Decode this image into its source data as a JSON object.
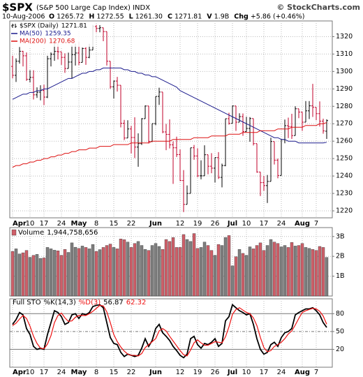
{
  "chart_data": [
    {
      "type": "ohlc",
      "title": "$SPX",
      "subtitle": "(S&P 500 Large Cap Index) INDX",
      "date": "10-Aug-2006",
      "source": "© StockCharts.com",
      "quote": [
        {
          "label": "O",
          "value": "1265.72"
        },
        {
          "label": "H",
          "value": "1272.55"
        },
        {
          "label": "L",
          "value": "1261.30"
        },
        {
          "label": "C",
          "value": "1271.81"
        },
        {
          "label": "V",
          "value": "1.9B"
        },
        {
          "label": "Chg",
          "value": "+5.86 (+0.46%)"
        }
      ],
      "name": "$SPX (Daily)",
      "up_color": "#000000",
      "down_color": "#c0002a",
      "categories": [
        "Apr",
        null,
        null,
        null,
        null,
        "10",
        null,
        null,
        null,
        "17",
        null,
        null,
        null,
        null,
        "24",
        null,
        null,
        null,
        null,
        "May",
        null,
        null,
        null,
        null,
        "8",
        null,
        null,
        null,
        null,
        "15",
        null,
        null,
        null,
        null,
        "22",
        null,
        null,
        null,
        null,
        null,
        null,
        "Jun",
        null,
        null,
        null,
        null,
        null,
        null,
        "12",
        null,
        null,
        null,
        null,
        "19",
        null,
        null,
        null,
        null,
        "26",
        null,
        null,
        null,
        null,
        "Jul",
        null,
        null,
        null,
        "10",
        null,
        null,
        null,
        null,
        "17",
        null,
        null,
        null,
        null,
        "24",
        null,
        null,
        null,
        null,
        null,
        "Aug",
        null,
        null,
        null,
        "7",
        null,
        null,
        null
      ],
      "open": [
        1302.9,
        1297.8,
        1305.9,
        1311.6,
        1309.0,
        1295.5,
        1296.6,
        1286.6,
        1288.1,
        1289.1,
        1285.3,
        1307.3,
        1309.9,
        1311.5,
        1311.3,
        1308.1,
        1301.7,
        1305.4,
        1309.7,
        1310.6,
        1305.2,
        1313.2,
        1308.1,
        1312.3,
        1325.8,
        1324.7,
        1325.1,
        1322.9,
        1305.9,
        1291.2,
        1294.5,
        1292.1,
        1270.3,
        1261.8,
        1267.0,
        1262.1,
        1256.6,
        1258.6,
        1272.9,
        1280.2,
        1259.9,
        1270.1,
        1285.7,
        1288.2,
        1265.3,
        1263.9,
        1257.9,
        1256.2,
        1252.3,
        1237.4,
        1223.7,
        1230.0,
        1256.2,
        1251.5,
        1240.1,
        1240.1,
        1252.2,
        1245.6,
        1244.5,
        1250.6,
        1239.2,
        1246.0,
        1272.9,
        1270.2,
        1280.2,
        1270.9,
        1274.1,
        1265.5,
        1267.3,
        1273.0,
        1258.6,
        1242.3,
        1236.2,
        1234.5,
        1236.9,
        1259.8,
        1249.1,
        1240.3,
        1260.9,
        1268.9,
        1268.4,
        1263.2,
        1278.6,
        1276.7,
        1270.9,
        1277.4,
        1280.3,
        1279.4,
        1275.8,
        1271.5,
        1265.72
      ],
      "high": [
        1309.0,
        1307.5,
        1314.0,
        1311.8,
        1310.9,
        1300.7,
        1300.7,
        1290.9,
        1292.1,
        1292.4,
        1309.0,
        1310.9,
        1318.2,
        1316.0,
        1311.3,
        1310.4,
        1310.8,
        1315.2,
        1316.0,
        1317.2,
        1313.7,
        1313.9,
        1315.9,
        1326.7,
        1326.7,
        1326.6,
        1325.2,
        1322.9,
        1305.9,
        1294.8,
        1296.9,
        1292.1,
        1272.2,
        1272.0,
        1268.8,
        1273.7,
        1264.5,
        1273.2,
        1280.5,
        1280.2,
        1270.1,
        1285.7,
        1290.7,
        1288.2,
        1269.9,
        1272.5,
        1259.9,
        1262.6,
        1255.2,
        1243.4,
        1234.6,
        1256.2,
        1257.8,
        1255.9,
        1249.0,
        1257.6,
        1252.2,
        1253.1,
        1250.6,
        1253.7,
        1247.1,
        1272.9,
        1276.3,
        1280.4,
        1280.2,
        1276.0,
        1275.9,
        1274.0,
        1273.8,
        1273.0,
        1258.6,
        1242.3,
        1240.1,
        1240.6,
        1262.0,
        1259.8,
        1250.0,
        1260.9,
        1272.4,
        1273.5,
        1275.7,
        1280.0,
        1278.6,
        1276.7,
        1283.0,
        1283.0,
        1292.9,
        1279.4,
        1282.8,
        1272.9,
        1272.55
      ],
      "low": [
        1296.0,
        1294.0,
        1304.5,
        1302.9,
        1294.6,
        1293.7,
        1283.9,
        1284.8,
        1283.4,
        1280.7,
        1284.7,
        1302.9,
        1306.1,
        1306.9,
        1303.8,
        1299.2,
        1301.7,
        1296.0,
        1303.4,
        1303.6,
        1305.2,
        1303.8,
        1307.6,
        1312.3,
        1322.5,
        1322.5,
        1317.4,
        1303.4,
        1290.1,
        1284.5,
        1288.5,
        1267.9,
        1260.6,
        1261.8,
        1252.9,
        1250.3,
        1245.3,
        1257.8,
        1272.9,
        1258.7,
        1259.5,
        1269.2,
        1280.8,
        1264.6,
        1254.8,
        1255.8,
        1235.5,
        1250.9,
        1237.1,
        1219.3,
        1223.7,
        1230.0,
        1249.3,
        1239.3,
        1238.1,
        1240.1,
        1241.0,
        1241.6,
        1236.3,
        1238.3,
        1233.5,
        1245.6,
        1269.5,
        1270.2,
        1265.9,
        1270.9,
        1263.1,
        1265.5,
        1259.7,
        1257.5,
        1241.9,
        1228.5,
        1231.5,
        1224.5,
        1236.9,
        1246.6,
        1238.7,
        1240.3,
        1258.8,
        1261.8,
        1261.3,
        1263.2,
        1273.2,
        1265.9,
        1270.9,
        1272.7,
        1273.9,
        1272.0,
        1268.4,
        1264.3,
        1261.3
      ],
      "close": [
        1297.8,
        1305.9,
        1311.6,
        1309.0,
        1295.5,
        1296.6,
        1286.6,
        1288.1,
        1289.1,
        1285.3,
        1307.3,
        1309.9,
        1311.5,
        1311.3,
        1308.1,
        1301.7,
        1305.4,
        1309.7,
        1310.6,
        1305.2,
        1313.2,
        1308.1,
        1312.3,
        1325.8,
        1324.7,
        1325.1,
        1322.9,
        1305.9,
        1291.2,
        1294.5,
        1292.1,
        1270.3,
        1261.8,
        1267.0,
        1262.1,
        1256.6,
        1258.6,
        1272.9,
        1280.2,
        1259.9,
        1270.1,
        1285.7,
        1288.2,
        1265.3,
        1263.9,
        1257.9,
        1256.2,
        1252.3,
        1237.4,
        1223.7,
        1230.0,
        1256.2,
        1251.5,
        1240.1,
        1240.1,
        1252.2,
        1245.6,
        1244.5,
        1250.6,
        1239.2,
        1246.0,
        1272.9,
        1270.2,
        1280.2,
        1270.9,
        1274.1,
        1265.5,
        1267.3,
        1273.0,
        1258.6,
        1242.3,
        1236.2,
        1234.5,
        1236.9,
        1259.8,
        1249.1,
        1240.3,
        1260.9,
        1268.9,
        1268.4,
        1263.2,
        1278.6,
        1276.7,
        1270.9,
        1277.4,
        1280.3,
        1279.4,
        1275.8,
        1271.5,
        1265.9,
        1271.81
      ],
      "series": [
        {
          "name": "MA(50)",
          "color": "#1a1a8c",
          "values": [
            1284,
            1285,
            1286,
            1287,
            1287,
            1288,
            1288,
            1289,
            1289,
            1290,
            1290,
            1291,
            1292,
            1293,
            1294,
            1295,
            1296,
            1296,
            1297,
            1298,
            1299,
            1299,
            1300,
            1300,
            1301,
            1301,
            1302,
            1302,
            1302,
            1302,
            1302,
            1302,
            1301,
            1301,
            1300,
            1300,
            1299,
            1299,
            1298,
            1298,
            1297,
            1297,
            1296,
            1295,
            1294,
            1293,
            1292,
            1291,
            1289,
            1288,
            1287,
            1286,
            1285,
            1284,
            1283,
            1282,
            1281,
            1280,
            1279,
            1278,
            1277,
            1276,
            1275,
            1274,
            1273,
            1272,
            1271,
            1270,
            1269,
            1268,
            1267,
            1266,
            1265,
            1264,
            1263,
            1262,
            1262,
            1261,
            1261,
            1260,
            1260,
            1260,
            1259,
            1259,
            1259,
            1259,
            1259,
            1259,
            1259,
            1259,
            1259.35
          ]
        },
        {
          "name": "MA(200)",
          "color": "#dd1111",
          "values": [
            1245,
            1246,
            1246,
            1247,
            1247,
            1248,
            1248,
            1249,
            1249,
            1250,
            1250,
            1251,
            1251,
            1252,
            1252,
            1253,
            1253,
            1254,
            1254,
            1255,
            1255,
            1255,
            1256,
            1256,
            1256,
            1257,
            1257,
            1257,
            1257,
            1258,
            1258,
            1258,
            1258,
            1258,
            1259,
            1259,
            1259,
            1259,
            1259,
            1259,
            1260,
            1260,
            1260,
            1260,
            1260,
            1260,
            1261,
            1261,
            1261,
            1261,
            1261,
            1261,
            1262,
            1262,
            1262,
            1262,
            1262,
            1263,
            1263,
            1263,
            1263,
            1263,
            1264,
            1264,
            1264,
            1264,
            1265,
            1265,
            1265,
            1265,
            1265,
            1266,
            1266,
            1266,
            1266,
            1266,
            1267,
            1267,
            1267,
            1267,
            1268,
            1268,
            1268,
            1268,
            1269,
            1269,
            1269,
            1269,
            1270,
            1270,
            1270.68
          ]
        }
      ],
      "ylim": [
        1216,
        1329
      ],
      "yticks": [
        1220,
        1230,
        1240,
        1250,
        1260,
        1270,
        1280,
        1290,
        1300,
        1310,
        1320
      ],
      "grid": true
    },
    {
      "type": "volume",
      "title": "Volume",
      "last_label": "1,944,758,656",
      "up_color": "#7f7f7f",
      "down_color": "#cf5f69",
      "values": [
        2250000000.0,
        2380000000.0,
        2120000000.0,
        2180000000.0,
        2300000000.0,
        1950000000.0,
        2050000000.0,
        2100000000.0,
        1900000000.0,
        1920000000.0,
        2450000000.0,
        2380000000.0,
        2310000000.0,
        2280000000.0,
        2050000000.0,
        2350000000.0,
        2200000000.0,
        2680000000.0,
        2460000000.0,
        2400000000.0,
        2520000000.0,
        2450000000.0,
        2380000000.0,
        2600000000.0,
        2250000000.0,
        2340000000.0,
        2450000000.0,
        2550000000.0,
        2620000000.0,
        2450000000.0,
        2380000000.0,
        2880000000.0,
        2840000000.0,
        2720000000.0,
        2450000000.0,
        2650000000.0,
        2750000000.0,
        2550000000.0,
        2350000000.0,
        2300000000.0,
        2550000000.0,
        2650000000.0,
        2500000000.0,
        2350000000.0,
        2850000000.0,
        2750000000.0,
        2950000000.0,
        2450000000.0,
        2450000000.0,
        3100000000.0,
        2850000000.0,
        2750000000.0,
        3150000000.0,
        2400000000.0,
        2450000000.0,
        2720000000.0,
        2550000000.0,
        2300000000.0,
        2050000000.0,
        2600000000.0,
        2550000000.0,
        2950000000.0,
        3050000000.0,
        1520000000.0,
        1980000000.0,
        2350000000.0,
        2150000000.0,
        2050000000.0,
        2480000000.0,
        2380000000.0,
        2550000000.0,
        2680000000.0,
        2300000000.0,
        2550000000.0,
        2850000000.0,
        2720000000.0,
        2650000000.0,
        2480000000.0,
        2550000000.0,
        2450000000.0,
        2700000000.0,
        2520000000.0,
        2550000000.0,
        2650000000.0,
        2450000000.0,
        2400000000.0,
        2350000000.0,
        2300000000.0,
        2500000000.0,
        2450000000.0,
        1944758656
      ],
      "ylim": [
        0,
        3450000000.0
      ],
      "yticks": [
        {
          "value": 1000000000.0,
          "label": "1B"
        },
        {
          "value": 2000000000.0,
          "label": "2B"
        },
        {
          "value": 3000000000.0,
          "label": "3B"
        }
      ],
      "grid": true
    },
    {
      "type": "stochastic",
      "title": "Full STO",
      "series": [
        {
          "name": "%K(14,3)",
          "color": "#000000",
          "values": [
            62,
            70,
            82,
            78,
            55,
            45,
            25,
            20,
            22,
            20,
            45,
            65,
            85,
            82,
            75,
            62,
            65,
            78,
            80,
            72,
            80,
            78,
            82,
            92,
            94,
            95,
            90,
            65,
            40,
            30,
            28,
            15,
            8,
            12,
            10,
            8,
            10,
            22,
            38,
            25,
            35,
            55,
            62,
            48,
            42,
            35,
            25,
            18,
            10,
            6,
            12,
            38,
            42,
            28,
            22,
            30,
            28,
            32,
            38,
            25,
            30,
            68,
            75,
            95,
            90,
            85,
            82,
            78,
            80,
            62,
            38,
            20,
            12,
            15,
            28,
            32,
            25,
            40,
            48,
            50,
            55,
            78,
            82,
            85,
            88,
            88,
            90,
            85,
            78,
            65,
            56.87
          ]
        },
        {
          "name": "%D(3)",
          "color": "#ee1111",
          "values": [
            60,
            64,
            71,
            77,
            72,
            59,
            42,
            30,
            22,
            21,
            29,
            43,
            65,
            77,
            81,
            73,
            67,
            68,
            74,
            77,
            77,
            77,
            80,
            84,
            89,
            94,
            93,
            83,
            65,
            45,
            33,
            24,
            17,
            12,
            10,
            10,
            9,
            13,
            23,
            28,
            33,
            38,
            51,
            55,
            51,
            42,
            34,
            26,
            18,
            11,
            9,
            19,
            31,
            36,
            31,
            27,
            27,
            30,
            33,
            32,
            31,
            41,
            58,
            79,
            87,
            90,
            86,
            82,
            80,
            73,
            60,
            40,
            23,
            16,
            18,
            25,
            28,
            32,
            38,
            46,
            51,
            61,
            72,
            82,
            85,
            87,
            89,
            88,
            84,
            76,
            62.32
          ]
        }
      ],
      "ylim": [
        -10,
        105
      ],
      "yticks": [
        20,
        50,
        80
      ],
      "grid": true
    }
  ]
}
